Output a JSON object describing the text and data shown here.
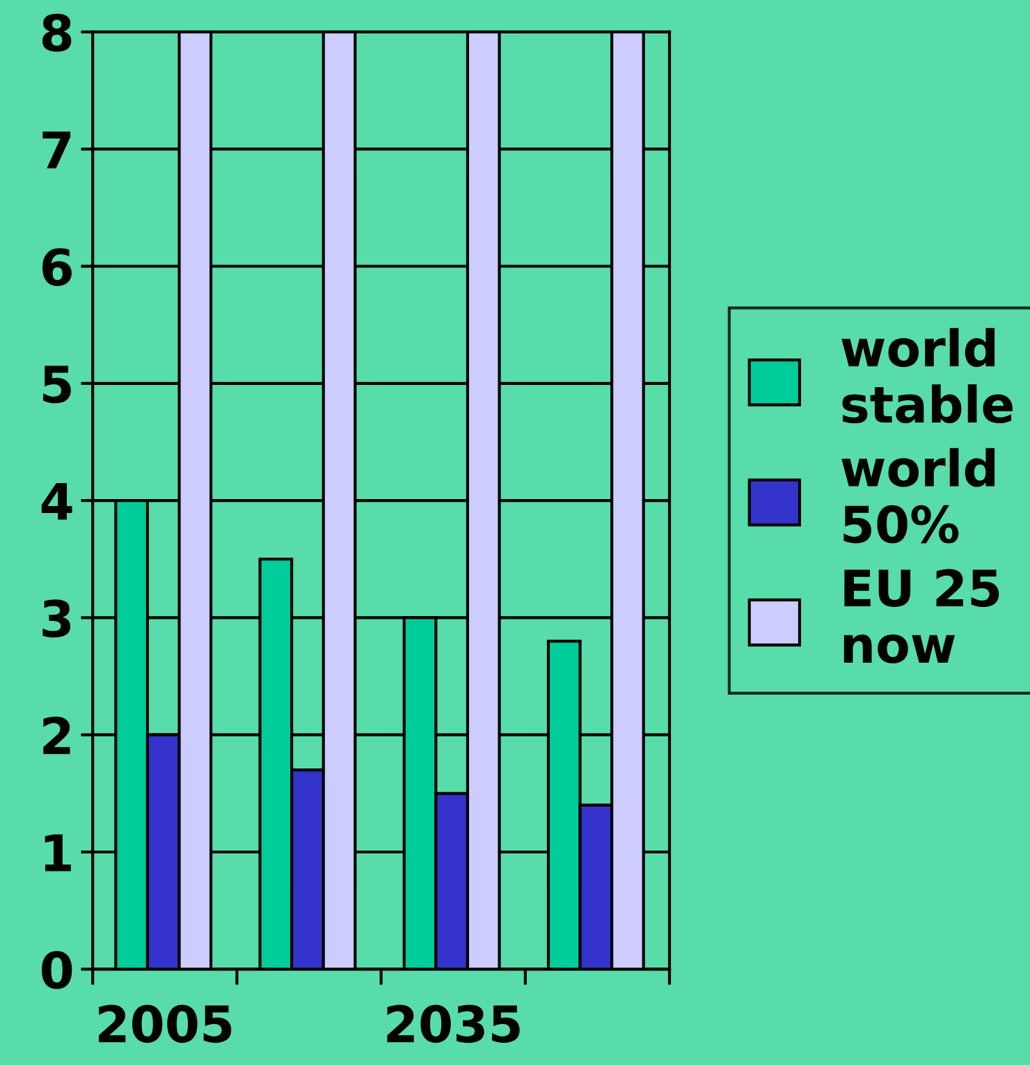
{
  "chart_data": {
    "type": "bar",
    "categories": [
      "2005",
      null,
      "2035",
      null
    ],
    "series": [
      {
        "name": "world stable",
        "color": "#00cc99",
        "values": [
          4,
          3.5,
          3,
          2.8
        ]
      },
      {
        "name": "world 50%",
        "color": "#3333cc",
        "values": [
          2,
          1.7,
          1.5,
          1.4
        ]
      },
      {
        "name": "EU 25 now",
        "color": "#ccccff",
        "values": [
          8,
          8,
          8,
          8
        ]
      }
    ],
    "ylim": [
      0,
      8
    ],
    "yticks": [
      0,
      1,
      2,
      3,
      4,
      5,
      6,
      7,
      8
    ],
    "grid": "y",
    "legend": "right"
  }
}
